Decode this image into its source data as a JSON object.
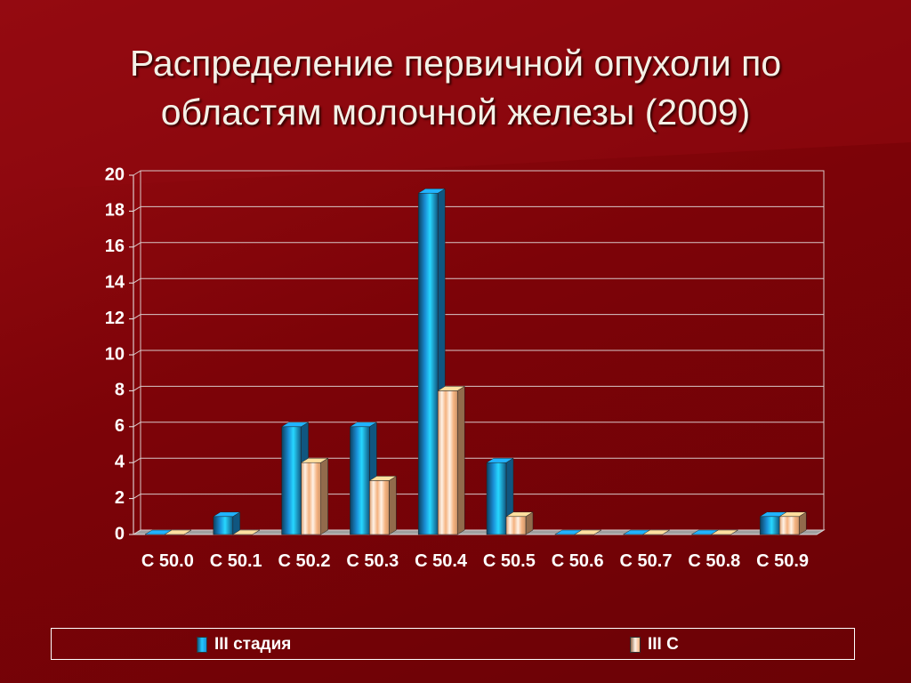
{
  "chart_data": {
    "type": "bar",
    "title": "Распределение первичной опухоли по областям молочной железы (2009)",
    "categories": [
      "C 50.0",
      "C 50.1",
      "C 50.2",
      "C 50.3",
      "C 50.4",
      "C 50.5",
      "C 50.6",
      "C 50.7",
      "C 50.8",
      "C 50.9"
    ],
    "series": [
      {
        "name": "III стадия",
        "color": "#1a8fd6",
        "values": [
          0,
          1,
          6,
          6,
          19,
          4,
          0,
          0,
          0,
          1
        ]
      },
      {
        "name": "III C",
        "color": "#f4b27f",
        "values": [
          0,
          0,
          4,
          3,
          8,
          1,
          0,
          0,
          0,
          1
        ]
      }
    ],
    "ylim": [
      0,
      20
    ],
    "yticks": [
      0,
      2,
      4,
      6,
      8,
      10,
      12,
      14,
      16,
      18,
      20
    ],
    "grid": true,
    "legend": "bottom"
  }
}
